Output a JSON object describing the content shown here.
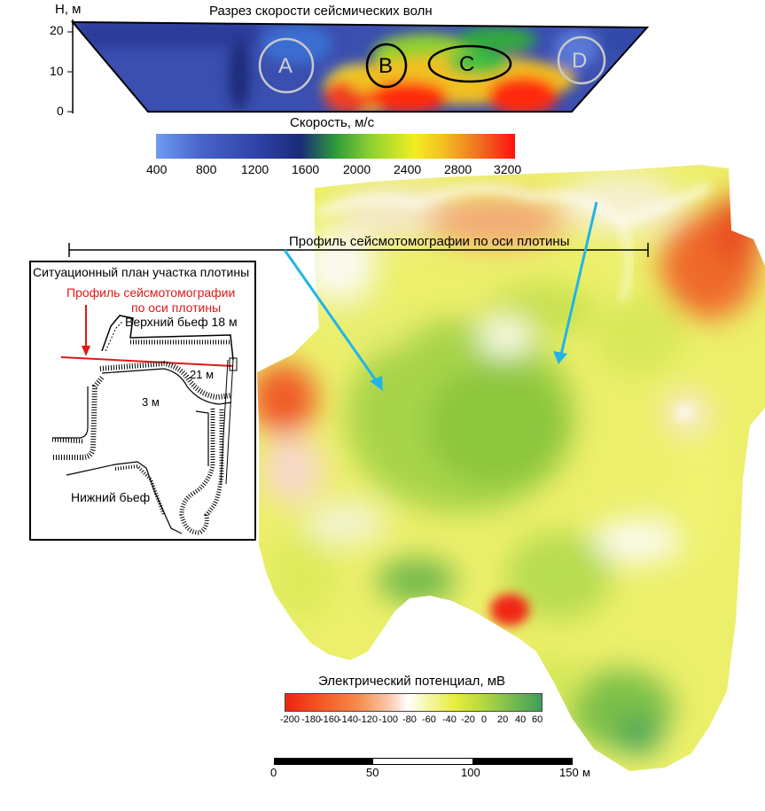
{
  "section": {
    "title": "Разрез скорости сейсмических волн",
    "y_axis_label": "H, м",
    "y_ticks": [
      "20",
      "10",
      "0"
    ],
    "zones": [
      "A",
      "B",
      "C",
      "D"
    ],
    "colorbar": {
      "title": "Скорость, м/с",
      "ticks": [
        "400",
        "800",
        "1200",
        "1600",
        "2000",
        "2400",
        "2800",
        "3200"
      ]
    }
  },
  "map": {
    "profile_label": "Профиль сейсмотомографии по оси плотины",
    "colorbar": {
      "title": "Электрический потенциал, мВ",
      "ticks": [
        "-200",
        "-180",
        "-160",
        "-140",
        "-120",
        "-100",
        "-80",
        "-60",
        "-40",
        "-20",
        "0",
        "20",
        "40",
        "60"
      ]
    },
    "scale": {
      "ticks": [
        "0",
        "50",
        "100",
        "150"
      ],
      "unit": "м"
    }
  },
  "inset": {
    "title": "Ситуационный план участка плотины",
    "profile_label_line1": "Профиль сейсмотомографии",
    "profile_label_line2": "по оси плотины",
    "upper_pool": "Верхний бьеф 18 м",
    "depth_21": "21 м",
    "depth_3": "3 м",
    "lower_pool": "Нижний бьеф"
  },
  "colors": {
    "profile_line": "#e01818",
    "arrow": "#22b4e8",
    "frame": "#000000"
  }
}
